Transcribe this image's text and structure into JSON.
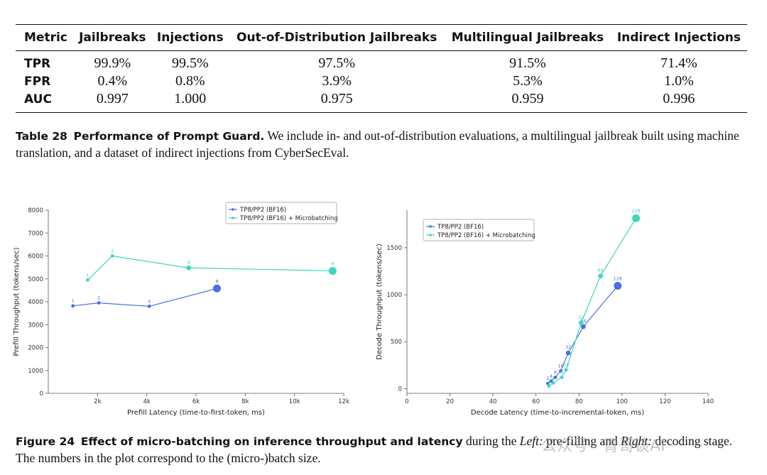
{
  "table": {
    "headers": [
      "Metric",
      "Jailbreaks",
      "Injections",
      "Out-of-Distribution Jailbreaks",
      "Multilingual Jailbreaks",
      "Indirect Injections"
    ],
    "rows": [
      {
        "metric": "TPR",
        "values": [
          "99.9%",
          "99.5%",
          "97.5%",
          "91.5%",
          "71.4%"
        ]
      },
      {
        "metric": "FPR",
        "values": [
          "0.4%",
          "0.8%",
          "3.9%",
          "5.3%",
          "1.0%"
        ]
      },
      {
        "metric": "AUC",
        "values": [
          "0.997",
          "1.000",
          "0.975",
          "0.959",
          "0.996"
        ]
      }
    ]
  },
  "table_caption": {
    "label": "Table 28",
    "title": "Performance of Prompt Guard.",
    "text": "We include in- and out-of-distribution evaluations, a multilingual jailbreak built using machine translation, and a dataset of indirect injections from CyberSecEval."
  },
  "figure_caption": {
    "label": "Figure 24",
    "title": "Effect of micro-batching on inference throughput and latency",
    "text1": "during the",
    "left": "Left:",
    "text2": "pre-filling and",
    "right": "Right:",
    "text3": "decoding stage. The numbers in the plot correspond to the (micro-)batch size."
  },
  "watermark": "公众号 · 青哥谈AI",
  "colors": {
    "series1": "#4a6fe3",
    "series2": "#3ed6bf"
  },
  "chart_data": [
    {
      "type": "line",
      "title": "",
      "xlabel": "Prefill Latency (time-to-first-token, ms)",
      "ylabel": "Prefill Throughput (tokens/sec)",
      "xlim": [
        0,
        12000
      ],
      "ylim": [
        0,
        8000
      ],
      "xticks": [
        {
          "v": 2000,
          "t": "2k"
        },
        {
          "v": 4000,
          "t": "4k"
        },
        {
          "v": 6000,
          "t": "6k"
        },
        {
          "v": 8000,
          "t": "8k"
        },
        {
          "v": 10000,
          "t": "10k"
        },
        {
          "v": 12000,
          "t": "12k"
        }
      ],
      "yticks": [
        {
          "v": 0,
          "t": "0"
        },
        {
          "v": 1000,
          "t": "1000"
        },
        {
          "v": 2000,
          "t": "2000"
        },
        {
          "v": 3000,
          "t": "3000"
        },
        {
          "v": 4000,
          "t": "4000"
        },
        {
          "v": 5000,
          "t": "5000"
        },
        {
          "v": 6000,
          "t": "6000"
        },
        {
          "v": 7000,
          "t": "7000"
        },
        {
          "v": 8000,
          "t": "8000"
        }
      ],
      "legend": "top-right",
      "series": [
        {
          "name": "TP8/PP2 (BF16)",
          "color": "#4a6fe3",
          "x": [
            1000,
            2050,
            4100,
            6850
          ],
          "y": [
            3820,
            3950,
            3800,
            4580
          ],
          "labels": [
            "1",
            "2",
            "4",
            "8"
          ],
          "sizes": [
            1,
            1,
            1,
            3
          ]
        },
        {
          "name": "TP8/PP2 (BF16) + Microbatching",
          "color": "#3ed6bf",
          "x": [
            1600,
            2600,
            5700,
            11550
          ],
          "y": [
            4950,
            6000,
            5480,
            5350
          ],
          "labels": [
            "1",
            "2",
            "4",
            "8"
          ],
          "sizes": [
            1,
            1,
            2,
            3
          ]
        }
      ]
    },
    {
      "type": "line",
      "title": "",
      "xlabel": "Decode Latency (time-to-incremental-token, ms)",
      "ylabel": "Decode Throughput (tokens/sec)",
      "xlim": [
        0,
        140
      ],
      "ylim": [
        -50,
        1900
      ],
      "xticks": [
        {
          "v": 0,
          "t": "0"
        },
        {
          "v": 20,
          "t": "20"
        },
        {
          "v": 40,
          "t": "40"
        },
        {
          "v": 60,
          "t": "60"
        },
        {
          "v": 80,
          "t": "80"
        },
        {
          "v": 100,
          "t": "100"
        },
        {
          "v": 120,
          "t": "120"
        },
        {
          "v": 140,
          "t": "140"
        }
      ],
      "yticks": [
        {
          "v": 0,
          "t": "0"
        },
        {
          "v": 500,
          "t": "500"
        },
        {
          "v": 1000,
          "t": "1000"
        },
        {
          "v": 1500,
          "t": "1500"
        }
      ],
      "legend": "top-left",
      "series": [
        {
          "name": "TP8/PP2 (BF16)",
          "color": "#4a6fe3",
          "x": [
            65.5,
            67,
            69,
            71.5,
            75,
            82,
            98
          ],
          "y": [
            55,
            80,
            120,
            190,
            380,
            660,
            1095
          ],
          "labels": [
            "2",
            "4",
            "8",
            "16",
            "32",
            "64",
            "128"
          ],
          "sizes": [
            1,
            1,
            1,
            1,
            2,
            2,
            3
          ]
        },
        {
          "name": "TP8/PP2 (BF16) + Microbatching",
          "color": "#3ed6bf",
          "x": [
            66,
            68,
            72,
            74,
            81,
            90,
            106.5
          ],
          "y": [
            30,
            60,
            120,
            200,
            700,
            1200,
            1815
          ],
          "labels": [
            "2",
            "4",
            "8",
            "16",
            "32",
            "64",
            "128"
          ],
          "sizes": [
            1,
            1,
            1,
            1,
            2,
            2,
            3
          ]
        }
      ]
    }
  ]
}
